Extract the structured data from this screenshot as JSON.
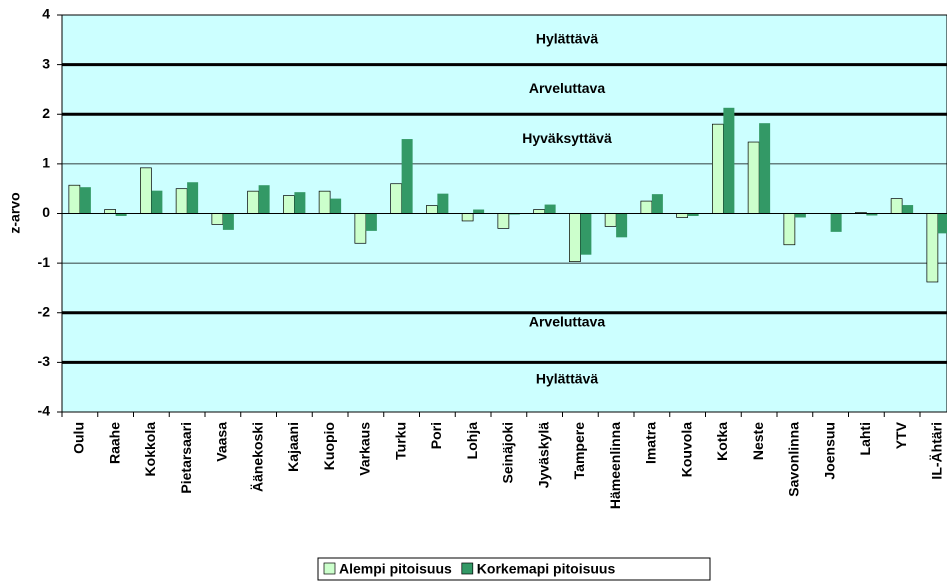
{
  "chart_data": {
    "type": "bar",
    "y_label": "z-arvo",
    "categories": [
      "Oulu",
      "Raahe",
      "Kokkola",
      "Pietarsaari",
      "Vaasa",
      "Äänekoski",
      "Kajaani",
      "Kuopio",
      "Varkaus",
      "Turku",
      "Pori",
      "Lohja",
      "Seinäjoki",
      "Jyväskylä",
      "Tampere",
      "Hämeenlinna",
      "Imatra",
      "Kouvola",
      "Kotka",
      "Neste",
      "Savonlinna",
      "Joensuu",
      "Lahti",
      "YTV",
      "IL-Ähtäri"
    ],
    "series": [
      {
        "name": "Alempi pitoisuus",
        "color": "#ccffcc",
        "values": [
          0.57,
          0.08,
          0.92,
          0.5,
          -0.22,
          0.45,
          0.36,
          0.45,
          -0.6,
          0.6,
          0.16,
          -0.15,
          -0.3,
          0.08,
          -0.97,
          -0.26,
          0.25,
          -0.08,
          1.8,
          1.44,
          -0.63,
          null,
          0.02,
          0.3,
          -1.38
        ]
      },
      {
        "name": "Korkemapi pitoisuus",
        "color": "#339966",
        "values": [
          0.53,
          -0.05,
          0.46,
          0.63,
          -0.33,
          0.57,
          0.43,
          0.3,
          -0.35,
          1.5,
          0.4,
          0.08,
          -0.02,
          0.18,
          -0.83,
          -0.48,
          0.39,
          -0.05,
          2.13,
          1.82,
          -0.08,
          -0.37,
          -0.04,
          0.17,
          -0.4
        ]
      }
    ],
    "ylim": [
      -4,
      4
    ],
    "yticks": [
      -4,
      -3,
      -2,
      -1,
      0,
      1,
      2,
      3,
      4
    ],
    "grid": true,
    "thresholds": [
      3,
      2,
      -2,
      -3
    ],
    "zones": [
      {
        "label": "Hylättävä",
        "y": 3.5
      },
      {
        "label": "Arveluttava",
        "y": 2.5
      },
      {
        "label": "Hyväksyttävä",
        "y": 1.5
      },
      {
        "label": "Arveluttava",
        "y": -2.2
      },
      {
        "label": "Hylättävä",
        "y": -3.35
      }
    ],
    "background": "#ccffff",
    "legend": "bottom"
  }
}
